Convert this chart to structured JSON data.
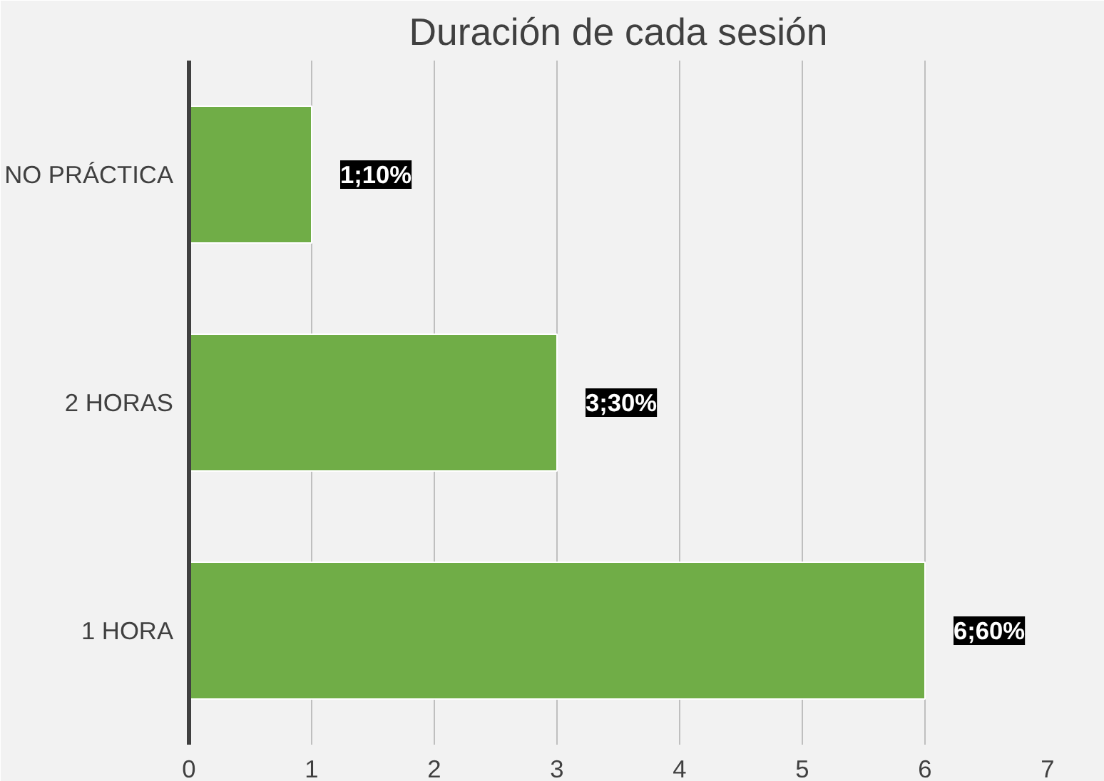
{
  "chart_data": {
    "type": "bar",
    "orientation": "horizontal",
    "title": "Duración de cada sesión",
    "categories": [
      "NO PRÁCTICA",
      "2 HORAS",
      "1 HORA"
    ],
    "values": [
      1,
      3,
      6
    ],
    "color": "#70ad47",
    "value_labels": [
      "1;10%",
      "3;30%",
      "6;60%"
    ],
    "xlim": [
      0,
      7
    ],
    "xticks": [
      0,
      1,
      2,
      3,
      4,
      5,
      6,
      7
    ],
    "grid": "x"
  }
}
